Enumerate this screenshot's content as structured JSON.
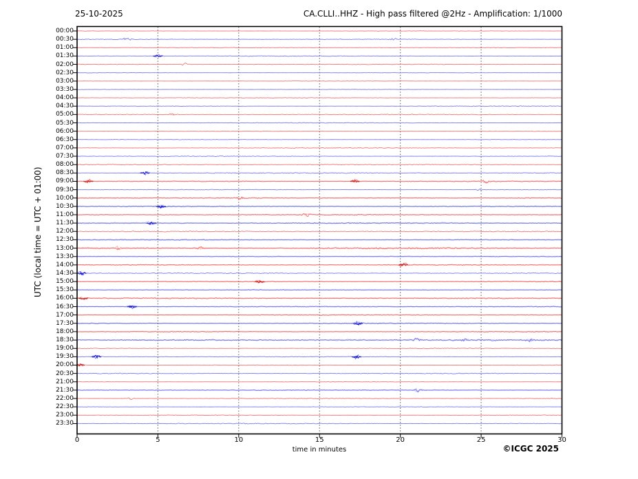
{
  "header": {
    "date": "25-10-2025",
    "title": "CA.CLLI..HHZ - High pass filtered @2Hz - Amplification: 1/1000"
  },
  "axes": {
    "y_label": "UTC (local time = UTC + 01:00)",
    "x_label": "time in minutes",
    "x_ticks": [
      0,
      5,
      10,
      15,
      20,
      25,
      30
    ],
    "x_range": [
      0,
      30
    ],
    "grid_minutes": [
      5,
      10,
      15,
      20,
      25
    ]
  },
  "footer": {
    "copyright": "©ICGC 2025"
  },
  "colors": {
    "trace_red": "#ef5050",
    "trace_red_dark": "#c81414",
    "trace_blue": "#5656ec",
    "trace_blue_dark": "#1414c8",
    "grid": "#555555",
    "frame": "#000000",
    "text": "#000000",
    "background": "#ffffff"
  },
  "chart_data": {
    "type": "line",
    "subtype": "helicorder-seismogram",
    "station_channel": "CA.CLLI..HHZ",
    "date": "25-10-2025",
    "filter": "High pass filtered @2Hz",
    "amplification": "1/1000",
    "minutes_per_row": 30,
    "x_range": [
      0,
      30
    ],
    "row_color_cycle": [
      "red",
      "blue"
    ],
    "row_labels": [
      "00:00",
      "00:30",
      "01:00",
      "01:30",
      "02:00",
      "02:30",
      "03:00",
      "03:30",
      "04:00",
      "04:30",
      "05:00",
      "05:30",
      "06:00",
      "06:30",
      "07:00",
      "07:30",
      "08:00",
      "08:30",
      "09:00",
      "09:30",
      "10:00",
      "10:30",
      "11:00",
      "11:30",
      "12:00",
      "12:30",
      "13:00",
      "13:30",
      "14:00",
      "14:30",
      "15:00",
      "15:30",
      "16:00",
      "16:30",
      "17:00",
      "17:30",
      "18:00",
      "18:30",
      "19:00",
      "19:30",
      "20:00",
      "20:30",
      "21:00",
      "21:30",
      "22:00",
      "22:30",
      "23:00",
      "23:30"
    ],
    "row_activity": [
      1.0,
      1.1,
      0.9,
      1.2,
      1.0,
      0.9,
      0.9,
      0.9,
      1.0,
      1.0,
      1.1,
      1.0,
      1.0,
      1.0,
      1.1,
      1.0,
      1.2,
      1.4,
      1.5,
      1.3,
      2.2,
      1.5,
      1.6,
      2.2,
      1.4,
      1.5,
      2.6,
      1.6,
      1.5,
      1.3,
      1.6,
      1.9,
      1.8,
      1.5,
      1.6,
      1.5,
      1.6,
      2.2,
      1.4,
      1.3,
      1.2,
      1.2,
      1.3,
      1.5,
      1.2,
      1.1,
      1.2,
      1.1
    ],
    "events": [
      {
        "row": "00:30",
        "minute": 3.1,
        "strength": 1.5
      },
      {
        "row": "00:30",
        "minute": 19.6,
        "strength": 1.2
      },
      {
        "row": "01:30",
        "minute": 5.0,
        "strength": 1.8
      },
      {
        "row": "02:00",
        "minute": 6.7,
        "strength": 1.2
      },
      {
        "row": "05:00",
        "minute": 5.9,
        "strength": 1.3
      },
      {
        "row": "08:30",
        "minute": 4.2,
        "strength": 2.2
      },
      {
        "row": "09:00",
        "minute": 0.7,
        "strength": 2.0
      },
      {
        "row": "09:00",
        "minute": 17.2,
        "strength": 1.9
      },
      {
        "row": "09:00",
        "minute": 25.3,
        "strength": 1.4
      },
      {
        "row": "09:30",
        "minute": 24.8,
        "strength": 1.3
      },
      {
        "row": "10:00",
        "minute": 10.1,
        "strength": 1.6
      },
      {
        "row": "10:30",
        "minute": 5.2,
        "strength": 2.0
      },
      {
        "row": "11:00",
        "minute": 14.2,
        "strength": 1.5
      },
      {
        "row": "11:30",
        "minute": 4.6,
        "strength": 2.0
      },
      {
        "row": "13:00",
        "minute": 2.5,
        "strength": 1.3
      },
      {
        "row": "13:00",
        "minute": 7.6,
        "strength": 1.5
      },
      {
        "row": "14:00",
        "minute": 20.2,
        "strength": 2.2
      },
      {
        "row": "14:30",
        "minute": 0.3,
        "strength": 2.4
      },
      {
        "row": "15:00",
        "minute": 11.3,
        "strength": 2.0
      },
      {
        "row": "16:00",
        "minute": 0.4,
        "strength": 1.8
      },
      {
        "row": "16:30",
        "minute": 3.4,
        "strength": 2.2
      },
      {
        "row": "17:30",
        "minute": 17.4,
        "strength": 2.3
      },
      {
        "row": "18:30",
        "minute": 21.0,
        "strength": 1.6
      },
      {
        "row": "18:30",
        "minute": 24.0,
        "strength": 1.4
      },
      {
        "row": "18:30",
        "minute": 28.0,
        "strength": 1.4
      },
      {
        "row": "19:30",
        "minute": 1.2,
        "strength": 2.6
      },
      {
        "row": "19:30",
        "minute": 17.3,
        "strength": 2.6
      },
      {
        "row": "20:00",
        "minute": 0.2,
        "strength": 1.8
      },
      {
        "row": "21:30",
        "minute": 21.1,
        "strength": 1.7
      },
      {
        "row": "22:00",
        "minute": 3.3,
        "strength": 1.3
      }
    ]
  }
}
